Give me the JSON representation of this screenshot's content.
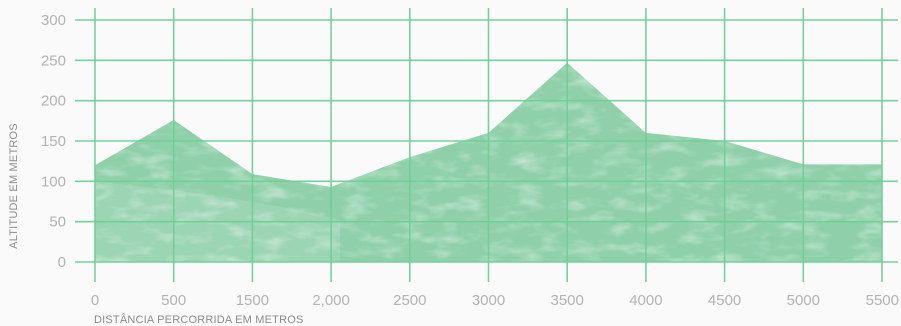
{
  "chart_data": {
    "type": "area",
    "title": "",
    "xlabel": "DISTÂNCIA PERCORRIDA EM METROS",
    "ylabel": "ALTITUDE EM METROS",
    "x_tick_labels": [
      "0",
      "500",
      "1500",
      "2,000",
      "2500",
      "3000",
      "3500",
      "4000",
      "4500",
      "5000",
      "5500"
    ],
    "y_tick_labels": [
      "0",
      "50",
      "100",
      "150",
      "200",
      "250",
      "300"
    ],
    "ylim": [
      0,
      300
    ],
    "grid": true,
    "series": [
      {
        "values": [
          120,
          176,
          109,
          93,
          130,
          160,
          247,
          160,
          150,
          121,
          121
        ]
      }
    ]
  },
  "colors": {
    "area_fill": "#8fd0aa",
    "area_texture": "#a9dcbc",
    "grid": "#6fcf97",
    "tick_label": "#b3b3b3",
    "axis_title": "#8c8c8c",
    "background": "#fafafa"
  }
}
